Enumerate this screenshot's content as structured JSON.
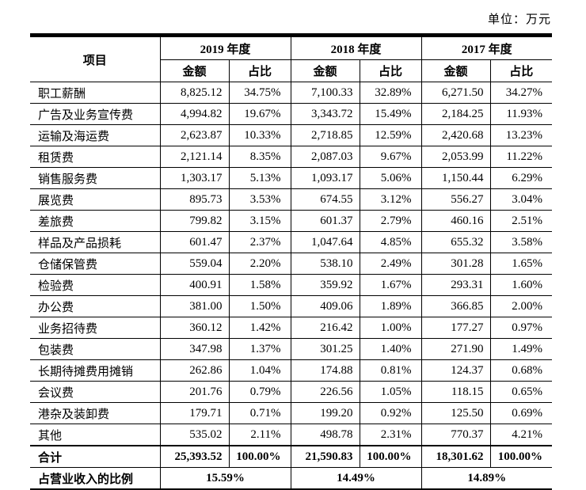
{
  "unit_label": "单位：万元",
  "table": {
    "col_item": "项目",
    "col_amount": "金额",
    "col_ratio": "占比",
    "year_headers": [
      "2019 年度",
      "2018 年度",
      "2017 年度"
    ],
    "rows": [
      {
        "label": "职工薪酬",
        "values": [
          "8,825.12",
          "34.75%",
          "7,100.33",
          "32.89%",
          "6,271.50",
          "34.27%"
        ]
      },
      {
        "label": "广告及业务宣传费",
        "values": [
          "4,994.82",
          "19.67%",
          "3,343.72",
          "15.49%",
          "2,184.25",
          "11.93%"
        ]
      },
      {
        "label": "运输及海运费",
        "values": [
          "2,623.87",
          "10.33%",
          "2,718.85",
          "12.59%",
          "2,420.68",
          "13.23%"
        ]
      },
      {
        "label": "租赁费",
        "values": [
          "2,121.14",
          "8.35%",
          "2,087.03",
          "9.67%",
          "2,053.99",
          "11.22%"
        ]
      },
      {
        "label": "销售服务费",
        "values": [
          "1,303.17",
          "5.13%",
          "1,093.17",
          "5.06%",
          "1,150.44",
          "6.29%"
        ]
      },
      {
        "label": "展览费",
        "values": [
          "895.73",
          "3.53%",
          "674.55",
          "3.12%",
          "556.27",
          "3.04%"
        ]
      },
      {
        "label": "差旅费",
        "values": [
          "799.82",
          "3.15%",
          "601.37",
          "2.79%",
          "460.16",
          "2.51%"
        ]
      },
      {
        "label": "样品及产品损耗",
        "values": [
          "601.47",
          "2.37%",
          "1,047.64",
          "4.85%",
          "655.32",
          "3.58%"
        ]
      },
      {
        "label": "仓储保管费",
        "values": [
          "559.04",
          "2.20%",
          "538.10",
          "2.49%",
          "301.28",
          "1.65%"
        ]
      },
      {
        "label": "检验费",
        "values": [
          "400.91",
          "1.58%",
          "359.92",
          "1.67%",
          "293.31",
          "1.60%"
        ]
      },
      {
        "label": "办公费",
        "values": [
          "381.00",
          "1.50%",
          "409.06",
          "1.89%",
          "366.85",
          "2.00%"
        ]
      },
      {
        "label": "业务招待费",
        "values": [
          "360.12",
          "1.42%",
          "216.42",
          "1.00%",
          "177.27",
          "0.97%"
        ]
      },
      {
        "label": "包装费",
        "values": [
          "347.98",
          "1.37%",
          "301.25",
          "1.40%",
          "271.90",
          "1.49%"
        ]
      },
      {
        "label": "长期待摊费用摊销",
        "values": [
          "262.86",
          "1.04%",
          "174.88",
          "0.81%",
          "124.37",
          "0.68%"
        ]
      },
      {
        "label": "会议费",
        "values": [
          "201.76",
          "0.79%",
          "226.56",
          "1.05%",
          "118.15",
          "0.65%"
        ]
      },
      {
        "label": "港杂及装卸费",
        "values": [
          "179.71",
          "0.71%",
          "199.20",
          "0.92%",
          "125.50",
          "0.69%"
        ]
      },
      {
        "label": "其他",
        "values": [
          "535.02",
          "2.11%",
          "498.78",
          "2.31%",
          "770.37",
          "4.21%"
        ]
      }
    ],
    "total_row": {
      "label": "合计",
      "values": [
        "25,393.52",
        "100.00%",
        "21,590.83",
        "100.00%",
        "18,301.62",
        "100.00%"
      ]
    },
    "ratio_row": {
      "label": "占营业收入的比例",
      "values": [
        "15.59%",
        "14.49%",
        "14.89%"
      ]
    }
  }
}
